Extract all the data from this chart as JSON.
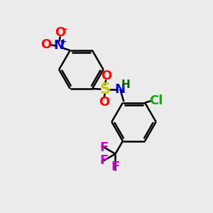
{
  "background_color": "#ebebeb",
  "bond_color": "#000000",
  "figsize": [
    3.0,
    3.0
  ],
  "dpi": 100,
  "atom_colors": {
    "N_nitro": "#0000cc",
    "O": "#ff0000",
    "S": "#cccc00",
    "N_sulfonamide": "#0000cc",
    "H": "#006400",
    "Cl": "#00aa00",
    "F": "#cc00cc",
    "C": "#000000"
  },
  "font_size_atoms": 13,
  "font_size_small": 10,
  "font_size_charge": 8
}
